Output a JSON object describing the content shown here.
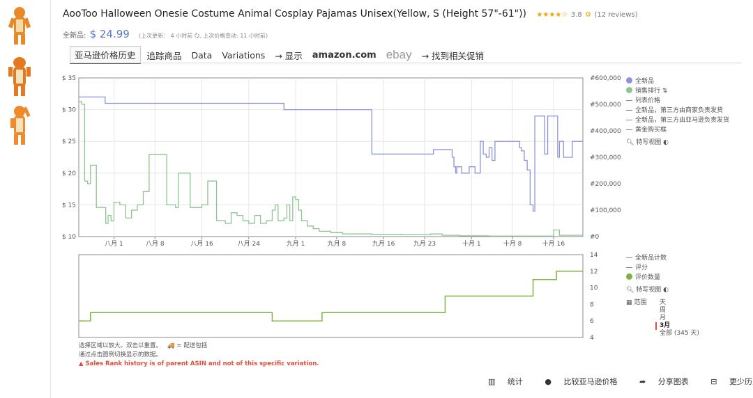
{
  "product": {
    "title": "AooToo Halloween Onesie Costume Animal Cosplay Pajamas Unisex(Yellow, S (Height 57\"-61\"))",
    "stars": "★★★★☆",
    "rating": "3.8",
    "reviews": "(12 reviews)",
    "price_label": "全新品:",
    "price": "$ 24.99",
    "last_update": "(上次更新： 4 小时前 🗘, 上次价格变动: 11 小时前)"
  },
  "tabs": [
    "亚马逊价格历史",
    "追踪商品",
    "Data",
    "Variations",
    "→ 显示",
    "amazon.com",
    "ebay",
    "→ 找到相关促销"
  ],
  "legend_top": [
    {
      "label": "全新品",
      "kind": "dot",
      "color": "#8a93db"
    },
    {
      "label": "销售排行 ⇅",
      "kind": "dot",
      "color": "#8cc590"
    },
    {
      "label": "列表价格",
      "kind": "dash"
    },
    {
      "label": "全新品，第三方由商家负责发货",
      "kind": "dash"
    },
    {
      "label": "全新品，第三方由亚马逊负责发货",
      "kind": "dash"
    },
    {
      "label": "黄金购买框",
      "kind": "dash"
    },
    {
      "label": "特写视图",
      "kind": "zoom"
    }
  ],
  "legend_bottom": [
    {
      "label": "全新品计数",
      "kind": "dash"
    },
    {
      "label": "评分",
      "kind": "dash"
    },
    {
      "label": "评价数量",
      "kind": "dot",
      "color": "#7cb342"
    },
    {
      "label": "特写视图",
      "kind": "zoom"
    }
  ],
  "range": {
    "label": "范围",
    "options": [
      "天",
      "周",
      "月",
      "3月",
      "全部 (345 天)"
    ],
    "selected": "3月"
  },
  "notes": {
    "line1": "选择区域以放大。双击以重置。",
    "ship": "= 配送包括",
    "line2": "通过点击图例切换显示的数据。",
    "warning": "▲ Sales Rank history is of parent ASIN and not of this specific variation."
  },
  "footer": [
    "统计",
    "比较亚马逊价格",
    "分享图表",
    "更少历史数据"
  ],
  "colors": {
    "price": "#8a93db",
    "rank": "#8cc590",
    "reviews": "#7cb342"
  },
  "chart_data": [
    {
      "type": "line",
      "x_ticks": [
        "八月 1",
        "八月 8",
        "八月 16",
        "八月 24",
        "九月 1",
        "九月 8",
        "九月 16",
        "九月 23",
        "十月 1",
        "十月 8",
        "十月 16"
      ],
      "y_left_ticks": [
        "$ 35",
        "$ 30",
        "$ 25",
        "$ 20",
        "$ 15",
        "$ 10"
      ],
      "y_right_ticks": [
        "#600,000",
        "#500,000",
        "#400,000",
        "#300,000",
        "#200,000",
        "#100,000",
        "#0"
      ],
      "ylim_left": [
        10,
        35
      ],
      "ylim_right": [
        0,
        600000
      ],
      "xlim_days": [
        0,
        86
      ],
      "series": [
        {
          "name": "全新品",
          "axis": "left",
          "step": true,
          "points": [
            [
              0,
              32
            ],
            [
              4.5,
              31
            ],
            [
              33,
              31
            ],
            [
              35,
              30
            ],
            [
              49,
              30
            ],
            [
              50,
              23
            ],
            [
              60,
              23
            ],
            [
              60.5,
              23.7
            ],
            [
              63.5,
              23.7
            ],
            [
              63.7,
              22.5
            ],
            [
              64,
              21
            ],
            [
              64.3,
              20
            ],
            [
              64.5,
              21
            ],
            [
              65.2,
              21
            ],
            [
              65.3,
              20
            ],
            [
              66.5,
              20
            ],
            [
              66.6,
              21
            ],
            [
              67.5,
              21
            ],
            [
              67.6,
              20
            ],
            [
              68.4,
              20
            ],
            [
              68.5,
              25
            ],
            [
              69,
              23
            ],
            [
              69.5,
              22.5
            ],
            [
              70,
              24
            ],
            [
              70.5,
              22
            ],
            [
              71,
              25
            ],
            [
              75,
              25
            ],
            [
              75.2,
              24
            ],
            [
              75.5,
              23.5
            ],
            [
              76,
              22
            ],
            [
              76.5,
              20.5
            ],
            [
              77,
              15
            ],
            [
              77.5,
              14
            ],
            [
              77.8,
              29
            ],
            [
              79,
              29
            ],
            [
              79.5,
              23
            ],
            [
              80,
              29
            ],
            [
              81.5,
              29
            ],
            [
              81.7,
              22.5
            ],
            [
              82,
              25
            ],
            [
              82.5,
              25
            ],
            [
              82.7,
              22.5
            ],
            [
              84,
              22.5
            ],
            [
              84.2,
              25
            ],
            [
              86,
              25
            ]
          ]
        },
        {
          "name": "销售排行",
          "axis": "right",
          "step": true,
          "points": [
            [
              0,
              510000
            ],
            [
              0.5,
              500000
            ],
            [
              1,
              210000
            ],
            [
              1.5,
              200000
            ],
            [
              2,
              270000
            ],
            [
              2.7,
              270000
            ],
            [
              3,
              110000
            ],
            [
              4.5,
              110000
            ],
            [
              4.6,
              50000
            ],
            [
              5,
              80000
            ],
            [
              5.5,
              60000
            ],
            [
              6,
              130000
            ],
            [
              7,
              120000
            ],
            [
              8,
              70000
            ],
            [
              9,
              100000
            ],
            [
              10,
              120000
            ],
            [
              11,
              170000
            ],
            [
              12,
              310000
            ],
            [
              14.5,
              310000
            ],
            [
              15,
              120000
            ],
            [
              16.5,
              110000
            ],
            [
              17,
              240000
            ],
            [
              18.8,
              240000
            ],
            [
              19,
              110000
            ],
            [
              21,
              120000
            ],
            [
              22,
              210000
            ],
            [
              23.5,
              60000
            ],
            [
              25,
              50000
            ],
            [
              26,
              90000
            ],
            [
              27,
              80000
            ],
            [
              28,
              60000
            ],
            [
              29,
              50000
            ],
            [
              30,
              80000
            ],
            [
              31,
              50000
            ],
            [
              32,
              60000
            ],
            [
              33,
              100000
            ],
            [
              33.5,
              120000
            ],
            [
              34,
              60000
            ],
            [
              35,
              70000
            ],
            [
              35.5,
              120000
            ],
            [
              36,
              60000
            ],
            [
              36.5,
              150000
            ],
            [
              37,
              140000
            ],
            [
              37.5,
              100000
            ],
            [
              38,
              60000
            ],
            [
              39,
              40000
            ],
            [
              40,
              30000
            ],
            [
              41,
              20000
            ],
            [
              43,
              15000
            ],
            [
              45,
              10000
            ],
            [
              50,
              8000
            ],
            [
              55,
              7000
            ],
            [
              60,
              10000
            ],
            [
              62,
              5000
            ],
            [
              65,
              3000
            ],
            [
              70,
              2000
            ],
            [
              78,
              2000
            ],
            [
              81,
              25000
            ],
            [
              82,
              5000
            ],
            [
              86,
              3000
            ]
          ]
        }
      ]
    },
    {
      "type": "line",
      "name": "评价数量",
      "y_ticks": [
        "14",
        "12",
        "10",
        "8",
        "6",
        "4"
      ],
      "ylim": [
        4,
        14
      ],
      "xlim_days": [
        0,
        86
      ],
      "step": true,
      "points": [
        [
          0,
          6
        ],
        [
          2,
          7
        ],
        [
          32,
          7
        ],
        [
          33,
          6
        ],
        [
          41,
          6
        ],
        [
          41.5,
          7
        ],
        [
          62,
          7
        ],
        [
          62.5,
          9
        ],
        [
          77,
          9
        ],
        [
          77.5,
          11
        ],
        [
          81,
          11
        ],
        [
          81.5,
          12
        ],
        [
          86,
          12
        ]
      ]
    }
  ]
}
